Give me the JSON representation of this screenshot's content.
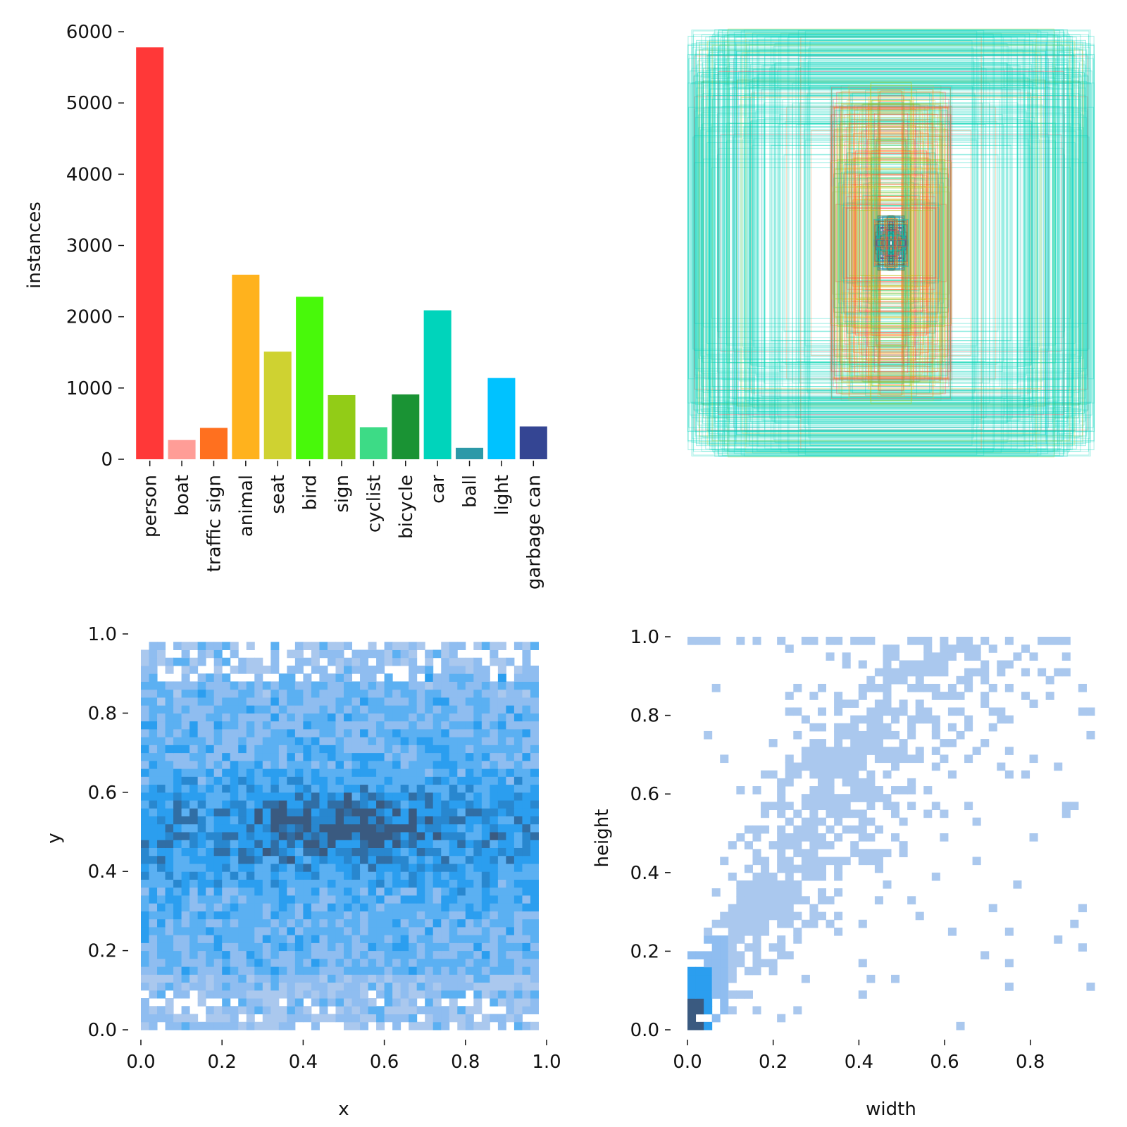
{
  "chart_data": [
    {
      "type": "bar",
      "panel": "class-counts",
      "title": "",
      "xlabel": "",
      "ylabel": "instances",
      "ylim": [
        0,
        6000
      ],
      "yticks": [
        "0",
        "1000",
        "2000",
        "3000",
        "4000",
        "5000",
        "6000"
      ],
      "categories": [
        "person",
        "boat",
        "traffic sign",
        "animal",
        "seat",
        "bird",
        "sign",
        "cyclist",
        "bicycle",
        "car",
        "ball",
        "light",
        "garbage can"
      ],
      "values": [
        5780,
        270,
        440,
        2590,
        1510,
        2280,
        900,
        450,
        910,
        2090,
        160,
        1140,
        460
      ],
      "colors": [
        "#ff3838",
        "#ff9d97",
        "#ff701f",
        "#ffb21d",
        "#cfd231",
        "#48f90a",
        "#92cc17",
        "#3ddb86",
        "#1a9334",
        "#00d4bb",
        "#2c99a8",
        "#00c2ff",
        "#344593"
      ]
    },
    {
      "type": "boxes",
      "panel": "box-overlay",
      "title": "",
      "description_values": {
        "dominant_color": "#00d4bb",
        "center": [
          0.5,
          0.5
        ]
      }
    },
    {
      "type": "heatmap",
      "panel": "xy-histogram",
      "xlabel": "x",
      "ylabel": "y",
      "xlim": [
        0,
        1
      ],
      "ylim": [
        0,
        1
      ],
      "xticks": [
        "0.0",
        "0.2",
        "0.4",
        "0.6",
        "0.8",
        "1.0"
      ],
      "yticks": [
        "0.0",
        "0.2",
        "0.4",
        "0.6",
        "0.8",
        "1.0"
      ],
      "bins": 50,
      "peak": [
        0.5,
        0.5
      ],
      "colors": [
        "#aac8ee",
        "#2b9eef",
        "#3a5a80"
      ]
    },
    {
      "type": "heatmap",
      "panel": "wh-histogram",
      "xlabel": "width",
      "ylabel": "height",
      "xlim": [
        0,
        0.95
      ],
      "ylim": [
        0,
        1
      ],
      "xticks": [
        "0.0",
        "0.2",
        "0.4",
        "0.6",
        "0.8"
      ],
      "yticks": [
        "0.0",
        "0.2",
        "0.4",
        "0.6",
        "0.8",
        "1.0"
      ],
      "bins": 50,
      "peak": [
        0.02,
        0.06
      ],
      "colors": [
        "#aac8ee",
        "#2b9eef",
        "#3a5a80"
      ]
    }
  ]
}
